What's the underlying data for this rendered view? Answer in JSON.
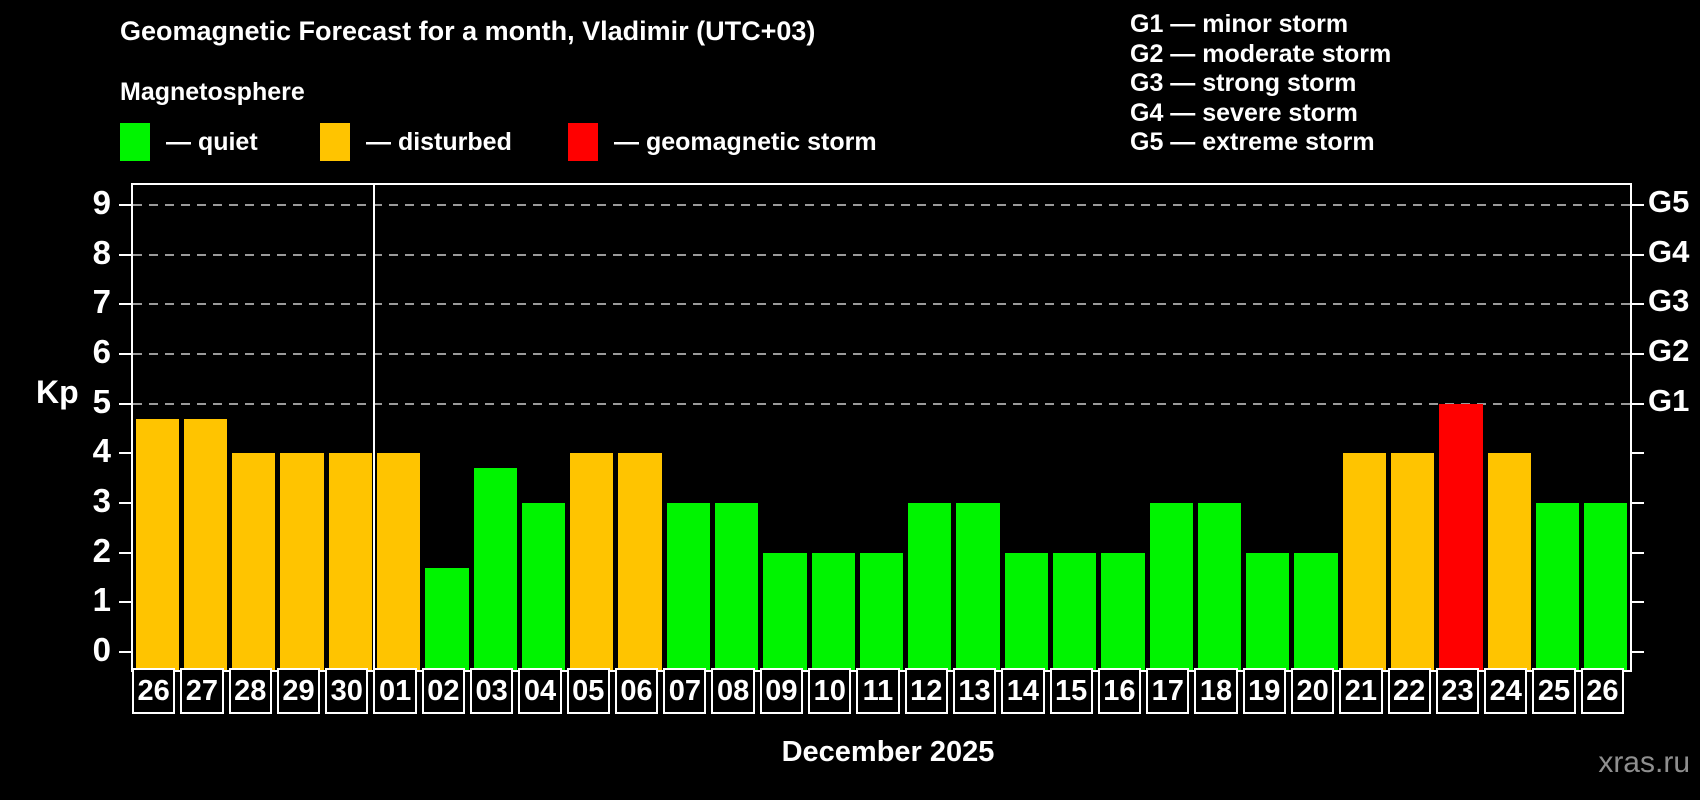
{
  "header": {
    "title": "Geomagnetic Forecast for a month, Vladimir (UTC+03)",
    "subtitle": "Magnetosphere"
  },
  "legend": {
    "items": [
      {
        "status": "quiet",
        "label": "— quiet"
      },
      {
        "status": "disturbed",
        "label": "— disturbed"
      },
      {
        "status": "storm",
        "label": "— geomagnetic storm"
      }
    ]
  },
  "g_legend": {
    "items": [
      "G1 — minor storm",
      "G2 — moderate storm",
      "G3 — strong storm",
      "G4 — severe storm",
      "G5 — extreme storm"
    ]
  },
  "chart_data": {
    "type": "bar",
    "title": "Geomagnetic Forecast for a month, Vladimir (UTC+03)",
    "xlabel": "December 2025",
    "ylabel": "Kp",
    "ylim": [
      -0.36,
      9.4
    ],
    "yticks": [
      0,
      1,
      2,
      3,
      4,
      5,
      6,
      7,
      8,
      9
    ],
    "grid_on": true,
    "grid_levels": [
      {
        "kp": 5,
        "g": "G1"
      },
      {
        "kp": 6,
        "g": "G2"
      },
      {
        "kp": 7,
        "g": "G3"
      },
      {
        "kp": 8,
        "g": "G4"
      },
      {
        "kp": 9,
        "g": "G5"
      }
    ],
    "categories": [
      "26",
      "27",
      "28",
      "29",
      "30",
      "01",
      "02",
      "03",
      "04",
      "05",
      "06",
      "07",
      "08",
      "09",
      "10",
      "11",
      "12",
      "13",
      "14",
      "15",
      "16",
      "17",
      "18",
      "19",
      "20",
      "21",
      "22",
      "23",
      "24",
      "25",
      "26"
    ],
    "values": [
      4.7,
      4.7,
      4,
      4,
      4,
      4,
      1.7,
      3.7,
      3,
      4,
      4,
      3,
      3,
      2,
      2,
      2,
      3,
      3,
      2,
      2,
      2,
      3,
      3,
      2,
      2,
      4,
      4,
      5,
      4,
      3,
      3
    ],
    "statuses": [
      "disturbed",
      "disturbed",
      "disturbed",
      "disturbed",
      "disturbed",
      "disturbed",
      "quiet",
      "quiet",
      "quiet",
      "disturbed",
      "disturbed",
      "quiet",
      "quiet",
      "quiet",
      "quiet",
      "quiet",
      "quiet",
      "quiet",
      "quiet",
      "quiet",
      "quiet",
      "quiet",
      "quiet",
      "quiet",
      "quiet",
      "disturbed",
      "disturbed",
      "storm",
      "disturbed",
      "quiet",
      "quiet"
    ],
    "month_separator_after_index": 4,
    "colors": {
      "quiet": "#00f400",
      "disturbed": "#ffc400",
      "storm": "#ff0000",
      "grid": "#9a9a9a",
      "axis": "#ffffff"
    }
  },
  "footer": {
    "month_label": "December 2025",
    "watermark": "xras.ru"
  }
}
